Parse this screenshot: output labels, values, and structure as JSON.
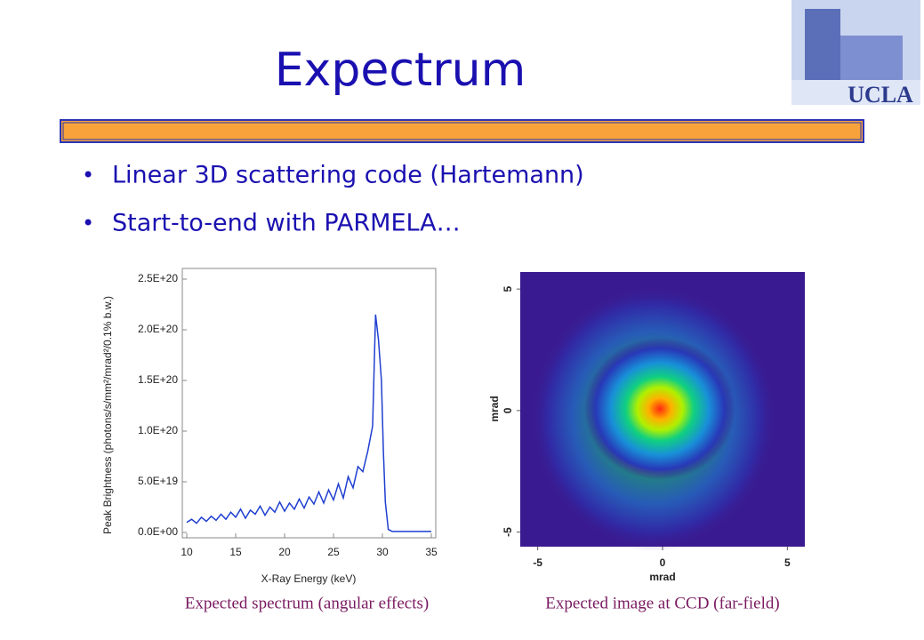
{
  "title": "Expectrum",
  "logo": "UCLA",
  "bullets": [
    "Linear 3D scattering code (Hartemann)",
    "Start-to-end with PARMELA…"
  ],
  "captions": [
    "Expected spectrum (angular effects)",
    "Expected image at CCD (far-field)"
  ],
  "chart_data": [
    {
      "type": "line",
      "xlabel": "X-Ray Energy (keV)",
      "ylabel": "Peak Brightness (photons/s/mm²/mrad²/0.1% b.w.)",
      "xlim": [
        10,
        35
      ],
      "xticks": [
        10,
        15,
        20,
        25,
        30,
        35
      ],
      "ylim": [
        0,
        2.5e+20
      ],
      "yticks": [
        {
          "value": 0,
          "label": "0.0E+00"
        },
        {
          "value": 5e+19,
          "label": "5.0E+19"
        },
        {
          "value": 1e+20,
          "label": "1.0E+20"
        },
        {
          "value": 1.5e+20,
          "label": "1.5E+20"
        },
        {
          "value": 2e+20,
          "label": "2.0E+20"
        },
        {
          "value": 2.5e+20,
          "label": "2.5E+20"
        }
      ],
      "series": [
        {
          "color": "#1f3fd0",
          "x": [
            10,
            10.5,
            11,
            11.5,
            12,
            12.5,
            13,
            13.5,
            14,
            14.5,
            15,
            15.5,
            16,
            16.5,
            17,
            17.5,
            18,
            18.5,
            19,
            19.5,
            20,
            20.5,
            21,
            21.5,
            22,
            22.5,
            23,
            23.5,
            24,
            24.5,
            25,
            25.5,
            26,
            26.5,
            27,
            27.5,
            28,
            28.5,
            29,
            29.3,
            29.6,
            29.9,
            30.1,
            30.3,
            30.6,
            31,
            33,
            35
          ],
          "values": [
            1e+19,
            1.3e+19,
            9e+18,
            1.5e+19,
            1.1e+19,
            1.6e+19,
            1.2e+19,
            1.8e+19,
            1.3e+19,
            2e+19,
            1.5e+19,
            2.3e+19,
            1.4e+19,
            2.2e+19,
            1.8e+19,
            2.6e+19,
            1.7e+19,
            2.5e+19,
            2e+19,
            3e+19,
            2.1e+19,
            2.9e+19,
            2.3e+19,
            3.3e+19,
            2.4e+19,
            3.5e+19,
            2.8e+19,
            4e+19,
            2.9e+19,
            4.2e+19,
            3.2e+19,
            4.8e+19,
            3.4e+19,
            5.5e+19,
            4.4e+19,
            6.5e+19,
            6e+19,
            8e+19,
            1.05e+20,
            2.15e+20,
            1.9e+20,
            1.5e+20,
            8e+19,
            3e+19,
            3e+18,
            1e+18,
            1e+18,
            1e+18
          ]
        }
      ]
    },
    {
      "type": "image",
      "xlabel": "mrad",
      "ylabel": "mrad",
      "xlim": [
        -5.7,
        5.7
      ],
      "xticks": [
        -5,
        0,
        5
      ],
      "ylim": [
        -5.6,
        5.7
      ],
      "yticks": [
        -5,
        0,
        5
      ]
    }
  ]
}
